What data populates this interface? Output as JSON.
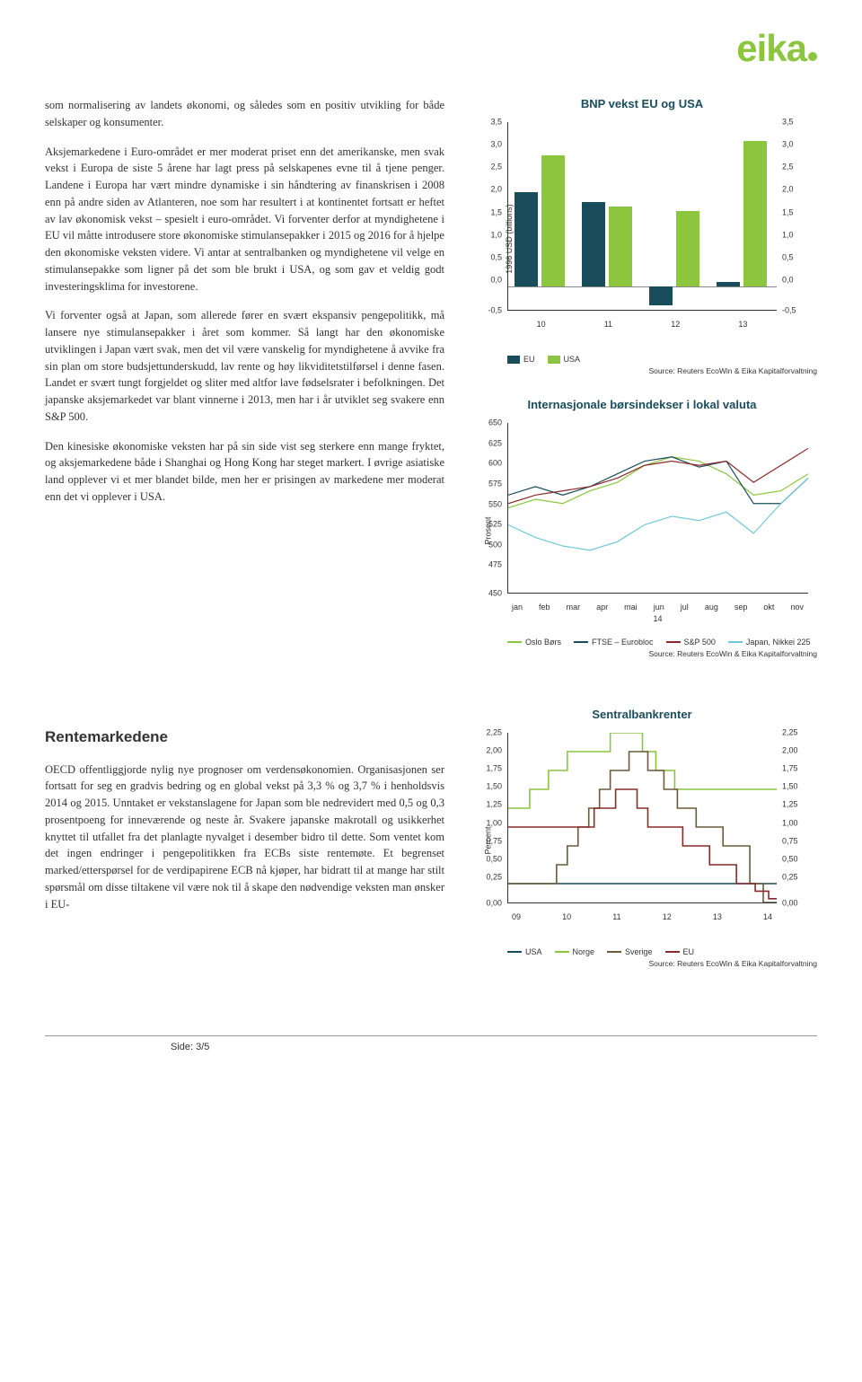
{
  "logo": {
    "text": "eika"
  },
  "paragraphs": {
    "p1": "som normalisering av landets økonomi, og således som en positiv utvikling for både selskaper og konsumenter.",
    "p2": "Aksjemarkedene i Euro-området er mer moderat priset enn det amerikanske, men svak vekst i Europa de siste 5 årene har lagt press på selskapenes evne til å tjene penger. Landene i Europa har vært mindre dynamiske i sin håndtering av finanskrisen i 2008 enn på andre siden av Atlanteren, noe som har resultert i at kontinentet fortsatt er heftet av lav økonomisk vekst – spesielt i euro-området. Vi forventer derfor at myndighetene i EU vil måtte introdusere store økonomiske stimulansepakker i 2015 og 2016 for å hjelpe den økonomiske veksten videre. Vi antar at sentralbanken og myndighetene vil velge en stimulansepakke som ligner på det som ble brukt i USA, og som gav et veldig godt investeringsklima for investorene.",
    "p3": "Vi forventer også at Japan, som allerede fører en svært ekspansiv pengepolitikk, må lansere nye stimulansepakker i året som kommer. Så langt har den økonomiske utviklingen i Japan vært svak, men det vil være vanskelig for myndighetene å avvike fra sin plan om store budsjettunderskudd, lav rente og høy likviditetstilførsel i denne fasen. Landet er svært tungt forgjeldet og sliter med altfor lave fødselsrater i befolkningen. Det japanske aksjemarkedet var blant vinnerne i 2013, men har i år utviklet seg svakere enn S&P 500.",
    "p4": "Den kinesiske økonomiske veksten har på sin side vist seg sterkere enn mange fryktet, og aksjemarkedene både i Shanghai og Hong Kong har steget markert. I øvrige asiatiske land opplever vi et mer blandet bilde, men her er prisingen av markedene mer moderat enn det vi opplever i USA."
  },
  "section2": {
    "title": "Rentemarkedene",
    "p1": "OECD offentliggjorde nylig nye prognoser om verdensøkonomien. Organisasjonen ser fortsatt for seg en gradvis bedring og en global vekst på 3,3 % og 3,7 % i henholdsvis 2014 og 2015. Unntaket er vekstanslagene for Japan som ble nedrevidert med 0,5 og 0,3 prosentpoeng for inneværende og neste år. Svakere japanske makrotall og usikkerhet knyttet til utfallet fra det planlagte nyvalget i desember bidro til dette. Som ventet kom det ingen endringer i pengepolitikken fra ECBs siste rentemøte. Et begrenset marked/etterspørsel for de verdipapirene ECB nå kjøper, har bidratt til at mange har stilt spørsmål om disse tiltakene vil være nok til å skape den nødvendige veksten man ønsker i EU-"
  },
  "chart1": {
    "title": "BNP vekst EU og USA",
    "ylabel": "1996 USD (billions)",
    "yticks": [
      "3,5",
      "3,0",
      "2,5",
      "2,0",
      "1,5",
      "1,0",
      "0,5",
      "0,0",
      "-0,5"
    ],
    "xlabels": [
      "10",
      "11",
      "12",
      "13"
    ],
    "eu_color": "#1a4d5c",
    "usa_color": "#8cc63e",
    "eu_values": [
      2.0,
      1.8,
      -0.4,
      0.1
    ],
    "usa_values": [
      2.8,
      1.7,
      1.6,
      3.1
    ],
    "ymin": -0.5,
    "ymax": 3.5,
    "legend": [
      {
        "label": "EU",
        "color": "#1a4d5c",
        "type": "sw"
      },
      {
        "label": "USA",
        "color": "#8cc63e",
        "type": "sw"
      }
    ],
    "source": "Source: Reuters EcoWin & Eika Kapitalforvaltning"
  },
  "chart2": {
    "title": "Internasjonale børsindekser i lokal valuta",
    "ylabel": "Prosent",
    "yticks": [
      "650",
      "625",
      "600",
      "575",
      "550",
      "525",
      "500",
      "475",
      "450"
    ],
    "ymin": 450,
    "ymax": 650,
    "xlabels": [
      "jan",
      "feb",
      "mar",
      "apr",
      "mai",
      "jun",
      "jul",
      "aug",
      "sep",
      "okt",
      "nov"
    ],
    "xbottom": "14",
    "series": {
      "oslo": {
        "color": "#8cc63e",
        "points": [
          550,
          560,
          555,
          570,
          580,
          600,
          610,
          605,
          590,
          565,
          570,
          590
        ]
      },
      "ftse": {
        "color": "#1a4d5c",
        "points": [
          565,
          575,
          565,
          575,
          590,
          605,
          610,
          598,
          605,
          555,
          555,
          585
        ]
      },
      "sp500": {
        "color": "#8a2a2a",
        "points": [
          555,
          565,
          570,
          575,
          585,
          600,
          605,
          600,
          605,
          580,
          600,
          620
        ]
      },
      "nikkei": {
        "color": "#6fc7d6",
        "points": [
          530,
          515,
          505,
          500,
          510,
          530,
          540,
          535,
          545,
          520,
          555,
          585
        ]
      }
    },
    "legend": [
      {
        "label": "Oslo Børs",
        "color": "#8cc63e",
        "type": "ln"
      },
      {
        "label": "FTSE – Eurobloc",
        "color": "#1a4d5c",
        "type": "ln"
      },
      {
        "label": "S&P 500",
        "color": "#8a2a2a",
        "type": "ln"
      },
      {
        "label": "Japan, Nikkei 225",
        "color": "#6fc7d6",
        "type": "ln"
      }
    ],
    "source": "Source: Reuters EcoWin & Eika Kapitalforvaltning"
  },
  "chart3": {
    "title": "Sentralbankrenter",
    "ylabel": "Percent",
    "yticks": [
      "2,25",
      "2,00",
      "1,75",
      "1,50",
      "1,25",
      "1,00",
      "0,75",
      "0,50",
      "0,25",
      "0,00"
    ],
    "ymin": 0.0,
    "ymax": 2.25,
    "xlabels": [
      "09",
      "10",
      "11",
      "12",
      "13",
      "14"
    ],
    "series": {
      "usa": {
        "color": "#1a4d5c",
        "points": [
          [
            0,
            0.25
          ],
          [
            100,
            0.25
          ]
        ]
      },
      "norge": {
        "color": "#8cc63e",
        "points": [
          [
            0,
            1.25
          ],
          [
            8,
            1.25
          ],
          [
            8,
            1.5
          ],
          [
            15,
            1.5
          ],
          [
            15,
            1.75
          ],
          [
            22,
            1.75
          ],
          [
            22,
            2.0
          ],
          [
            38,
            2.0
          ],
          [
            38,
            2.25
          ],
          [
            50,
            2.25
          ],
          [
            50,
            2.0
          ],
          [
            55,
            2.0
          ],
          [
            55,
            1.75
          ],
          [
            62,
            1.75
          ],
          [
            62,
            1.5
          ],
          [
            100,
            1.5
          ]
        ]
      },
      "sverige": {
        "color": "#6a5a3a",
        "points": [
          [
            0,
            0.25
          ],
          [
            18,
            0.25
          ],
          [
            18,
            0.5
          ],
          [
            22,
            0.5
          ],
          [
            22,
            0.75
          ],
          [
            26,
            0.75
          ],
          [
            26,
            1.0
          ],
          [
            30,
            1.0
          ],
          [
            30,
            1.25
          ],
          [
            34,
            1.25
          ],
          [
            34,
            1.5
          ],
          [
            38,
            1.5
          ],
          [
            38,
            1.75
          ],
          [
            45,
            1.75
          ],
          [
            45,
            2.0
          ],
          [
            52,
            2.0
          ],
          [
            52,
            1.75
          ],
          [
            58,
            1.75
          ],
          [
            58,
            1.5
          ],
          [
            63,
            1.5
          ],
          [
            63,
            1.25
          ],
          [
            70,
            1.25
          ],
          [
            70,
            1.0
          ],
          [
            80,
            1.0
          ],
          [
            80,
            0.75
          ],
          [
            90,
            0.75
          ],
          [
            90,
            0.25
          ],
          [
            95,
            0.25
          ],
          [
            95,
            0.0
          ],
          [
            100,
            0.0
          ]
        ]
      },
      "eu": {
        "color": "#8a2a2a",
        "points": [
          [
            0,
            1.0
          ],
          [
            32,
            1.0
          ],
          [
            32,
            1.25
          ],
          [
            40,
            1.25
          ],
          [
            40,
            1.5
          ],
          [
            48,
            1.5
          ],
          [
            48,
            1.25
          ],
          [
            52,
            1.25
          ],
          [
            52,
            1.0
          ],
          [
            65,
            1.0
          ],
          [
            65,
            0.75
          ],
          [
            75,
            0.75
          ],
          [
            75,
            0.5
          ],
          [
            85,
            0.5
          ],
          [
            85,
            0.25
          ],
          [
            92,
            0.25
          ],
          [
            92,
            0.15
          ],
          [
            97,
            0.15
          ],
          [
            97,
            0.05
          ],
          [
            100,
            0.05
          ]
        ]
      }
    },
    "legend": [
      {
        "label": "USA",
        "color": "#1a4d5c",
        "type": "ln"
      },
      {
        "label": "Norge",
        "color": "#8cc63e",
        "type": "ln"
      },
      {
        "label": "Sverige",
        "color": "#6a5a3a",
        "type": "ln"
      },
      {
        "label": "EU",
        "color": "#8a2a2a",
        "type": "ln"
      }
    ],
    "source": "Source: Reuters EcoWin & Eika Kapitalforvaltning"
  },
  "footer": "Side: 3/5"
}
